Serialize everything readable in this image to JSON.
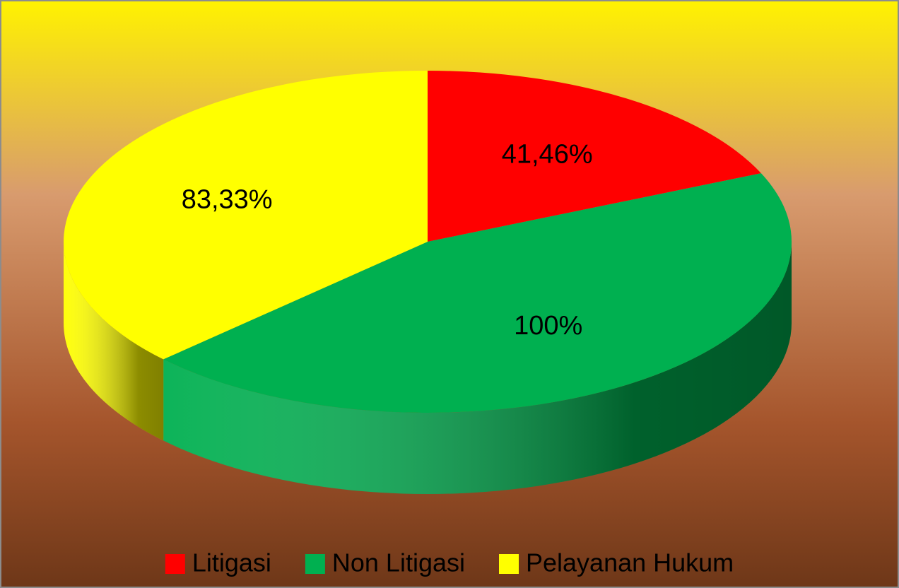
{
  "chart_data": {
    "type": "pie3d",
    "categories": [
      "Litigasi",
      "Non Litigasi",
      "Pelayanan Hukum"
    ],
    "values": [
      41.46,
      100,
      83.33
    ],
    "value_labels": [
      "41,46%",
      "100%",
      "83,33%"
    ],
    "colors": [
      "#ff0000",
      "#00b050",
      "#ffff00"
    ],
    "legend": "bottom"
  }
}
